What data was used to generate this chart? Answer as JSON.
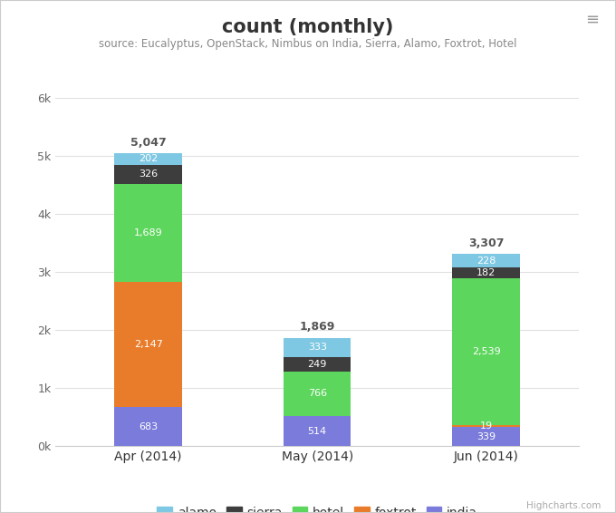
{
  "title": "count (monthly)",
  "subtitle": "source: Eucalyptus, OpenStack, Nimbus on India, Sierra, Alamo, Foxtrot, Hotel",
  "categories": [
    "Apr (2014)",
    "May (2014)",
    "Jun (2014)"
  ],
  "series": {
    "india": [
      683,
      514,
      339
    ],
    "foxtrot": [
      2147,
      7,
      19
    ],
    "hotel": [
      1689,
      766,
      2539
    ],
    "sierra": [
      326,
      249,
      182
    ],
    "alamo": [
      202,
      333,
      228
    ]
  },
  "totals": [
    5047,
    1869,
    3307
  ],
  "colors": {
    "india": "#7b7bdb",
    "foxtrot": "#e87c2a",
    "hotel": "#5cd65c",
    "sierra": "#3d3d3d",
    "alamo": "#7ec8e3"
  },
  "ylim": [
    0,
    6000
  ],
  "yticks": [
    0,
    1000,
    2000,
    3000,
    4000,
    5000,
    6000
  ],
  "ytick_labels": [
    "0k",
    "1k",
    "2k",
    "3k",
    "4k",
    "5k",
    "6k"
  ],
  "background_color": "#ffffff",
  "plot_bg_color": "#ffffff",
  "grid_color": "#e0e0e0",
  "bar_width": 0.4,
  "legend_order": [
    "alamo",
    "sierra",
    "hotel",
    "foxtrot",
    "india"
  ],
  "stack_order": [
    "india",
    "foxtrot",
    "hotel",
    "sierra",
    "alamo"
  ]
}
